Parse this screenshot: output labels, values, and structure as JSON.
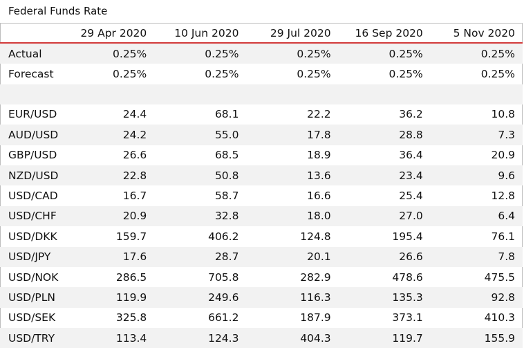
{
  "title": "Federal Funds Rate",
  "dates": [
    "29 Apr 2020",
    "10 Jun 2020",
    "29 Jul 2020",
    "16 Sep 2020",
    "5 Nov 2020"
  ],
  "rate_rows": [
    {
      "label": "Actual",
      "values": [
        "0.25%",
        "0.25%",
        "0.25%",
        "0.25%",
        "0.25%"
      ]
    },
    {
      "label": "Forecast",
      "values": [
        "0.25%",
        "0.25%",
        "0.25%",
        "0.25%",
        "0.25%"
      ]
    }
  ],
  "pair_rows": [
    {
      "label": "EUR/USD",
      "values": [
        "24.4",
        "68.1",
        "22.2",
        "36.2",
        "10.8"
      ]
    },
    {
      "label": "AUD/USD",
      "values": [
        "24.2",
        "55.0",
        "17.8",
        "28.8",
        "7.3"
      ]
    },
    {
      "label": "GBP/USD",
      "values": [
        "26.6",
        "68.5",
        "18.9",
        "36.4",
        "20.9"
      ]
    },
    {
      "label": "NZD/USD",
      "values": [
        "22.8",
        "50.8",
        "13.6",
        "23.4",
        "9.6"
      ]
    },
    {
      "label": "USD/CAD",
      "values": [
        "16.7",
        "58.7",
        "16.6",
        "25.4",
        "12.8"
      ]
    },
    {
      "label": "USD/CHF",
      "values": [
        "20.9",
        "32.8",
        "18.0",
        "27.0",
        "6.4"
      ]
    },
    {
      "label": "USD/DKK",
      "values": [
        "159.7",
        "406.2",
        "124.8",
        "195.4",
        "76.1"
      ]
    },
    {
      "label": "USD/JPY",
      "values": [
        "17.6",
        "28.7",
        "20.1",
        "26.6",
        "7.8"
      ]
    },
    {
      "label": "USD/NOK",
      "values": [
        "286.5",
        "705.8",
        "282.9",
        "478.6",
        "475.5"
      ]
    },
    {
      "label": "USD/PLN",
      "values": [
        "119.9",
        "249.6",
        "116.3",
        "135.3",
        "92.8"
      ]
    },
    {
      "label": "USD/SEK",
      "values": [
        "325.8",
        "661.2",
        "187.9",
        "373.1",
        "410.3"
      ]
    },
    {
      "label": "USD/TRY",
      "values": [
        "113.4",
        "124.3",
        "404.3",
        "119.7",
        "155.9"
      ]
    }
  ]
}
